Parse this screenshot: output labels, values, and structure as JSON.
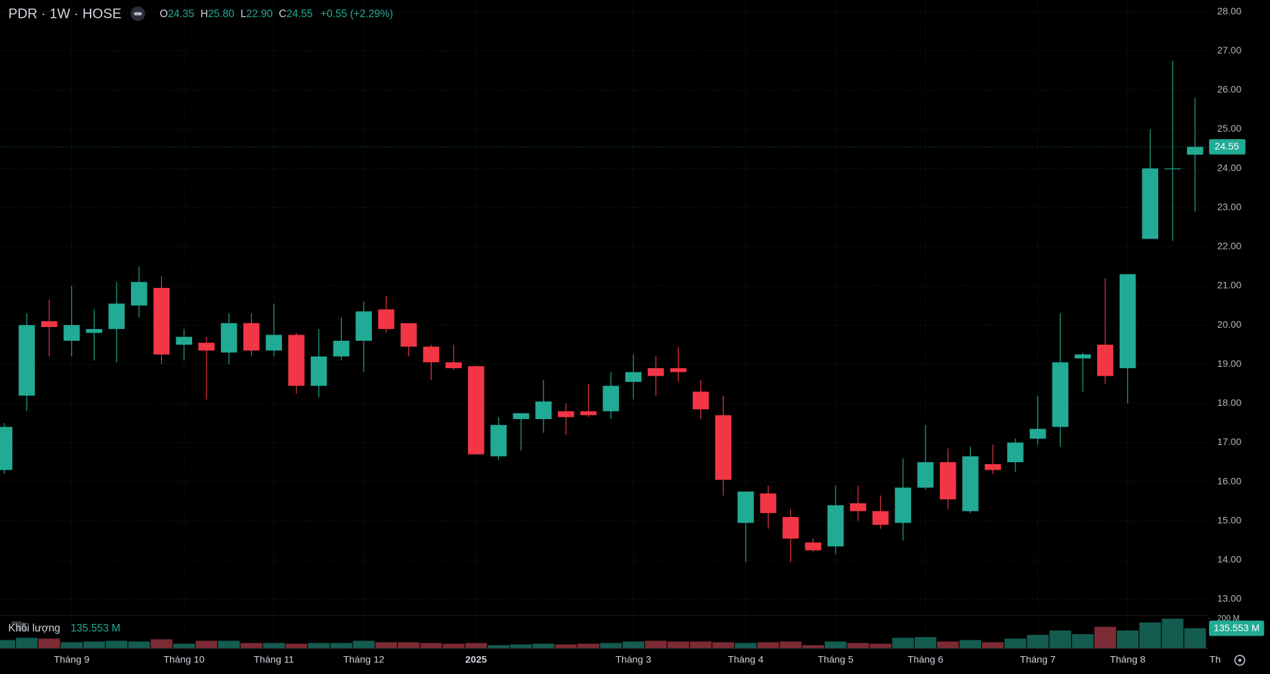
{
  "chart_data": {
    "type": "candlestick",
    "title": "PDR · 1W · HOSE",
    "ohlc_labels": [
      "O",
      "H",
      "L",
      "C"
    ],
    "ohlc_values": [
      "24.35",
      "25.80",
      "22.90",
      "24.55"
    ],
    "change": "+0.55 (+2.29%)",
    "volume_title": "Khối lượng",
    "volume_last_label": "135.553 M",
    "up_color": "#22ab94",
    "down_color": "#f23645",
    "volume_up_color": "#145c50",
    "volume_down_color": "#7c2a33",
    "grid": true,
    "categories": [
      null,
      null,
      null,
      "Tháng 9",
      null,
      null,
      null,
      null,
      "Tháng 10",
      null,
      null,
      null,
      "Tháng 11",
      null,
      null,
      null,
      "Tháng 12",
      null,
      null,
      null,
      null,
      "2025",
      null,
      null,
      null,
      null,
      null,
      null,
      "Tháng 3",
      null,
      null,
      null,
      null,
      "Tháng 4",
      null,
      null,
      null,
      "Tháng 5",
      null,
      null,
      null,
      "Tháng 6",
      null,
      null,
      null,
      null,
      "Tháng 7",
      null,
      null,
      null,
      "Tháng 8",
      null,
      null,
      null
    ],
    "next_category_label": "Th",
    "open": [
      16.3,
      18.2,
      20.1,
      19.6,
      19.8,
      19.9,
      20.5,
      20.95,
      19.5,
      19.55,
      19.3,
      20.05,
      19.35,
      19.75,
      18.45,
      19.2,
      19.6,
      20.4,
      20.05,
      19.45,
      19.05,
      18.95,
      16.65,
      17.6,
      17.6,
      17.8,
      17.8,
      17.8,
      18.55,
      18.9,
      18.9,
      18.3,
      17.7,
      14.95,
      15.7,
      15.1,
      14.45,
      14.35,
      15.45,
      15.25,
      14.95,
      15.85,
      16.5,
      15.25,
      16.45,
      16.5,
      17.1,
      17.4,
      19.15,
      19.5,
      18.9,
      22.2,
      24.0,
      24.35
    ],
    "high": [
      17.5,
      20.3,
      20.65,
      21.0,
      20.4,
      21.1,
      21.5,
      21.25,
      19.9,
      19.7,
      20.3,
      20.3,
      20.55,
      19.8,
      19.9,
      20.2,
      20.6,
      20.75,
      20.05,
      19.5,
      19.5,
      18.95,
      17.65,
      17.75,
      18.6,
      18.0,
      18.5,
      18.8,
      19.25,
      19.2,
      19.45,
      18.6,
      18.2,
      15.75,
      15.9,
      15.3,
      14.55,
      15.9,
      15.9,
      15.65,
      16.6,
      17.45,
      16.85,
      16.9,
      16.95,
      17.1,
      18.2,
      20.3,
      19.3,
      21.2,
      21.3,
      25.0,
      26.75,
      25.8
    ],
    "low": [
      16.2,
      17.8,
      19.2,
      19.2,
      19.1,
      19.05,
      20.2,
      19.0,
      19.1,
      18.1,
      19.0,
      19.2,
      19.2,
      18.25,
      18.15,
      19.1,
      18.8,
      19.8,
      19.2,
      18.6,
      18.85,
      16.7,
      16.55,
      16.8,
      17.25,
      17.2,
      17.65,
      17.6,
      18.1,
      18.2,
      18.55,
      17.6,
      15.65,
      13.95,
      14.8,
      13.95,
      14.2,
      14.15,
      15.0,
      14.8,
      14.5,
      15.8,
      15.3,
      15.2,
      16.2,
      16.25,
      16.95,
      16.9,
      18.3,
      18.5,
      18.0,
      22.2,
      22.15,
      22.9
    ],
    "close": [
      17.4,
      20.0,
      19.95,
      20.0,
      19.9,
      20.55,
      21.1,
      19.25,
      19.7,
      19.35,
      20.05,
      19.35,
      19.75,
      18.45,
      19.2,
      19.6,
      20.35,
      19.9,
      19.45,
      19.05,
      18.9,
      16.7,
      17.45,
      17.75,
      18.05,
      17.65,
      17.7,
      18.45,
      18.8,
      18.7,
      18.8,
      17.85,
      16.05,
      15.75,
      15.2,
      14.55,
      14.25,
      15.4,
      15.25,
      14.9,
      15.85,
      16.5,
      15.55,
      16.65,
      16.3,
      17.0,
      17.35,
      19.05,
      19.25,
      18.7,
      21.3,
      24.0,
      24.0,
      24.55
    ],
    "volume": [
      55,
      70,
      65,
      40,
      45,
      50,
      45,
      60,
      30,
      50,
      50,
      35,
      35,
      30,
      35,
      35,
      50,
      40,
      40,
      35,
      30,
      35,
      20,
      25,
      30,
      25,
      30,
      35,
      45,
      50,
      45,
      45,
      40,
      35,
      40,
      45,
      20,
      45,
      35,
      30,
      70,
      75,
      45,
      55,
      40,
      65,
      90,
      120,
      95,
      145,
      120,
      175,
      200,
      135.553
    ],
    "ylim": [
      12.6,
      28.3
    ],
    "yticks": [
      {
        "value": 13,
        "label": "13.00"
      },
      {
        "value": 14,
        "label": "14.00"
      },
      {
        "value": 15,
        "label": "15.00"
      },
      {
        "value": 16,
        "label": "16.00"
      },
      {
        "value": 17,
        "label": "17.00"
      },
      {
        "value": 18,
        "label": "18.00"
      },
      {
        "value": 19,
        "label": "19.00"
      },
      {
        "value": 20,
        "label": "20.00"
      },
      {
        "value": 21,
        "label": "21.00"
      },
      {
        "value": 22,
        "label": "22.00"
      },
      {
        "value": 23,
        "label": "23.00"
      },
      {
        "value": 24,
        "label": "24.00"
      },
      {
        "value": 25,
        "label": "25.00"
      },
      {
        "value": 26,
        "label": "26.00"
      },
      {
        "value": 27,
        "label": "27.00"
      },
      {
        "value": 28,
        "label": "28.00"
      }
    ],
    "volume_ylim": [
      0,
      215
    ],
    "volume_ticks": [
      {
        "value": 200,
        "label": "200 M"
      }
    ]
  }
}
